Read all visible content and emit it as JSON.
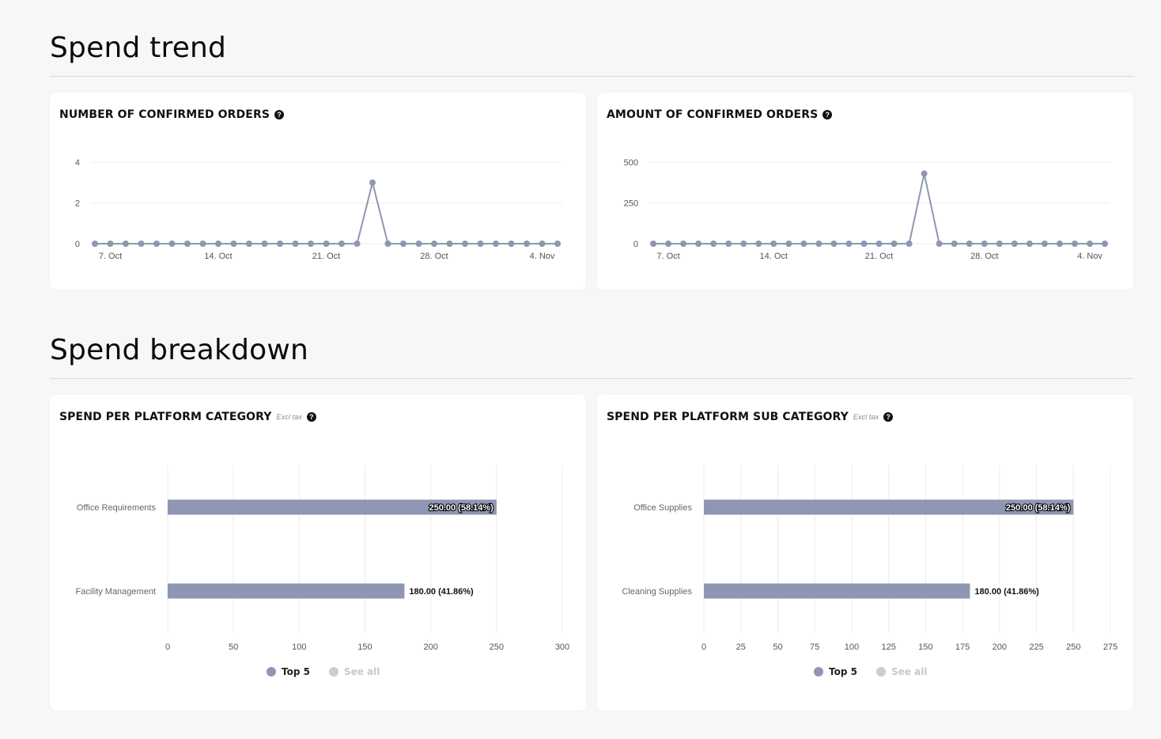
{
  "sections": {
    "trend": {
      "title": "Spend trend"
    },
    "breakdown": {
      "title": "Spend breakdown"
    }
  },
  "colors": {
    "series": "#8e96b3",
    "muted": "#cccccc",
    "grid": "#ececec"
  },
  "icons": {
    "help": "question-circle-icon"
  },
  "cards": {
    "orders_count": {
      "title": "NUMBER OF CONFIRMED ORDERS",
      "help": "?"
    },
    "orders_amount": {
      "title": "AMOUNT OF CONFIRMED ORDERS",
      "help": "?"
    },
    "category": {
      "title": "SPEND PER PLATFORM CATEGORY",
      "note": "Excl tax",
      "help": "?",
      "legend": [
        {
          "label": "Top 5",
          "active": true
        },
        {
          "label": "See all",
          "active": false
        }
      ]
    },
    "subcategory": {
      "title": "SPEND PER PLATFORM SUB CATEGORY",
      "note": "Excl tax",
      "help": "?",
      "legend": [
        {
          "label": "Top 5",
          "active": true
        },
        {
          "label": "See all",
          "active": false
        }
      ]
    }
  },
  "chart_data": [
    {
      "id": "orders_count",
      "type": "line",
      "x": [
        "2023-10-06",
        "2023-10-07",
        "2023-10-08",
        "2023-10-09",
        "2023-10-10",
        "2023-10-11",
        "2023-10-12",
        "2023-10-13",
        "2023-10-14",
        "2023-10-15",
        "2023-10-16",
        "2023-10-17",
        "2023-10-18",
        "2023-10-19",
        "2023-10-20",
        "2023-10-21",
        "2023-10-22",
        "2023-10-23",
        "2023-10-24",
        "2023-10-25",
        "2023-10-26",
        "2023-10-27",
        "2023-10-28",
        "2023-10-29",
        "2023-10-30",
        "2023-10-31",
        "2023-11-01",
        "2023-11-02",
        "2023-11-03",
        "2023-11-04",
        "2023-11-05"
      ],
      "series": [
        {
          "values": [
            0,
            0,
            0,
            0,
            0,
            0,
            0,
            0,
            0,
            0,
            0,
            0,
            0,
            0,
            0,
            0,
            0,
            0,
            3,
            0,
            0,
            0,
            0,
            0,
            0,
            0,
            0,
            0,
            0,
            0,
            0
          ]
        }
      ],
      "x_ticks": [
        "7. Oct",
        "14. Oct",
        "21. Oct",
        "28. Oct",
        "4. Nov"
      ],
      "y_ticks": [
        "0",
        "2",
        "4"
      ],
      "ylim": [
        0,
        4
      ],
      "grid": true
    },
    {
      "id": "orders_amount",
      "type": "line",
      "x": [
        "2023-10-06",
        "2023-10-07",
        "2023-10-08",
        "2023-10-09",
        "2023-10-10",
        "2023-10-11",
        "2023-10-12",
        "2023-10-13",
        "2023-10-14",
        "2023-10-15",
        "2023-10-16",
        "2023-10-17",
        "2023-10-18",
        "2023-10-19",
        "2023-10-20",
        "2023-10-21",
        "2023-10-22",
        "2023-10-23",
        "2023-10-24",
        "2023-10-25",
        "2023-10-26",
        "2023-10-27",
        "2023-10-28",
        "2023-10-29",
        "2023-10-30",
        "2023-10-31",
        "2023-11-01",
        "2023-11-02",
        "2023-11-03",
        "2023-11-04",
        "2023-11-05"
      ],
      "series": [
        {
          "values": [
            0,
            0,
            0,
            0,
            0,
            0,
            0,
            0,
            0,
            0,
            0,
            0,
            0,
            0,
            0,
            0,
            0,
            0,
            430,
            0,
            0,
            0,
            0,
            0,
            0,
            0,
            0,
            0,
            0,
            0,
            0
          ]
        }
      ],
      "x_ticks": [
        "7. Oct",
        "14. Oct",
        "21. Oct",
        "28. Oct",
        "4. Nov"
      ],
      "y_ticks": [
        "0",
        "250",
        "500"
      ],
      "ylim": [
        0,
        500
      ],
      "grid": true
    },
    {
      "id": "category",
      "type": "bar",
      "orientation": "horizontal",
      "categories": [
        "Office Requirements",
        "Facility Management"
      ],
      "values": [
        250,
        180
      ],
      "data_labels": [
        "250.00 (58.14%)",
        "180.00 (41.86%)"
      ],
      "x_ticks": [
        "0",
        "50",
        "100",
        "150",
        "200",
        "250",
        "300"
      ],
      "xlim": [
        0,
        300
      ],
      "grid": true
    },
    {
      "id": "subcategory",
      "type": "bar",
      "orientation": "horizontal",
      "categories": [
        "Office Supplies",
        "Cleaning Supplies"
      ],
      "values": [
        250,
        180
      ],
      "data_labels": [
        "250.00 (58.14%)",
        "180.00 (41.86%)"
      ],
      "x_ticks": [
        "0",
        "25",
        "50",
        "75",
        "100",
        "125",
        "150",
        "175",
        "200",
        "225",
        "250",
        "275"
      ],
      "xlim": [
        0,
        275
      ],
      "grid": true
    }
  ]
}
